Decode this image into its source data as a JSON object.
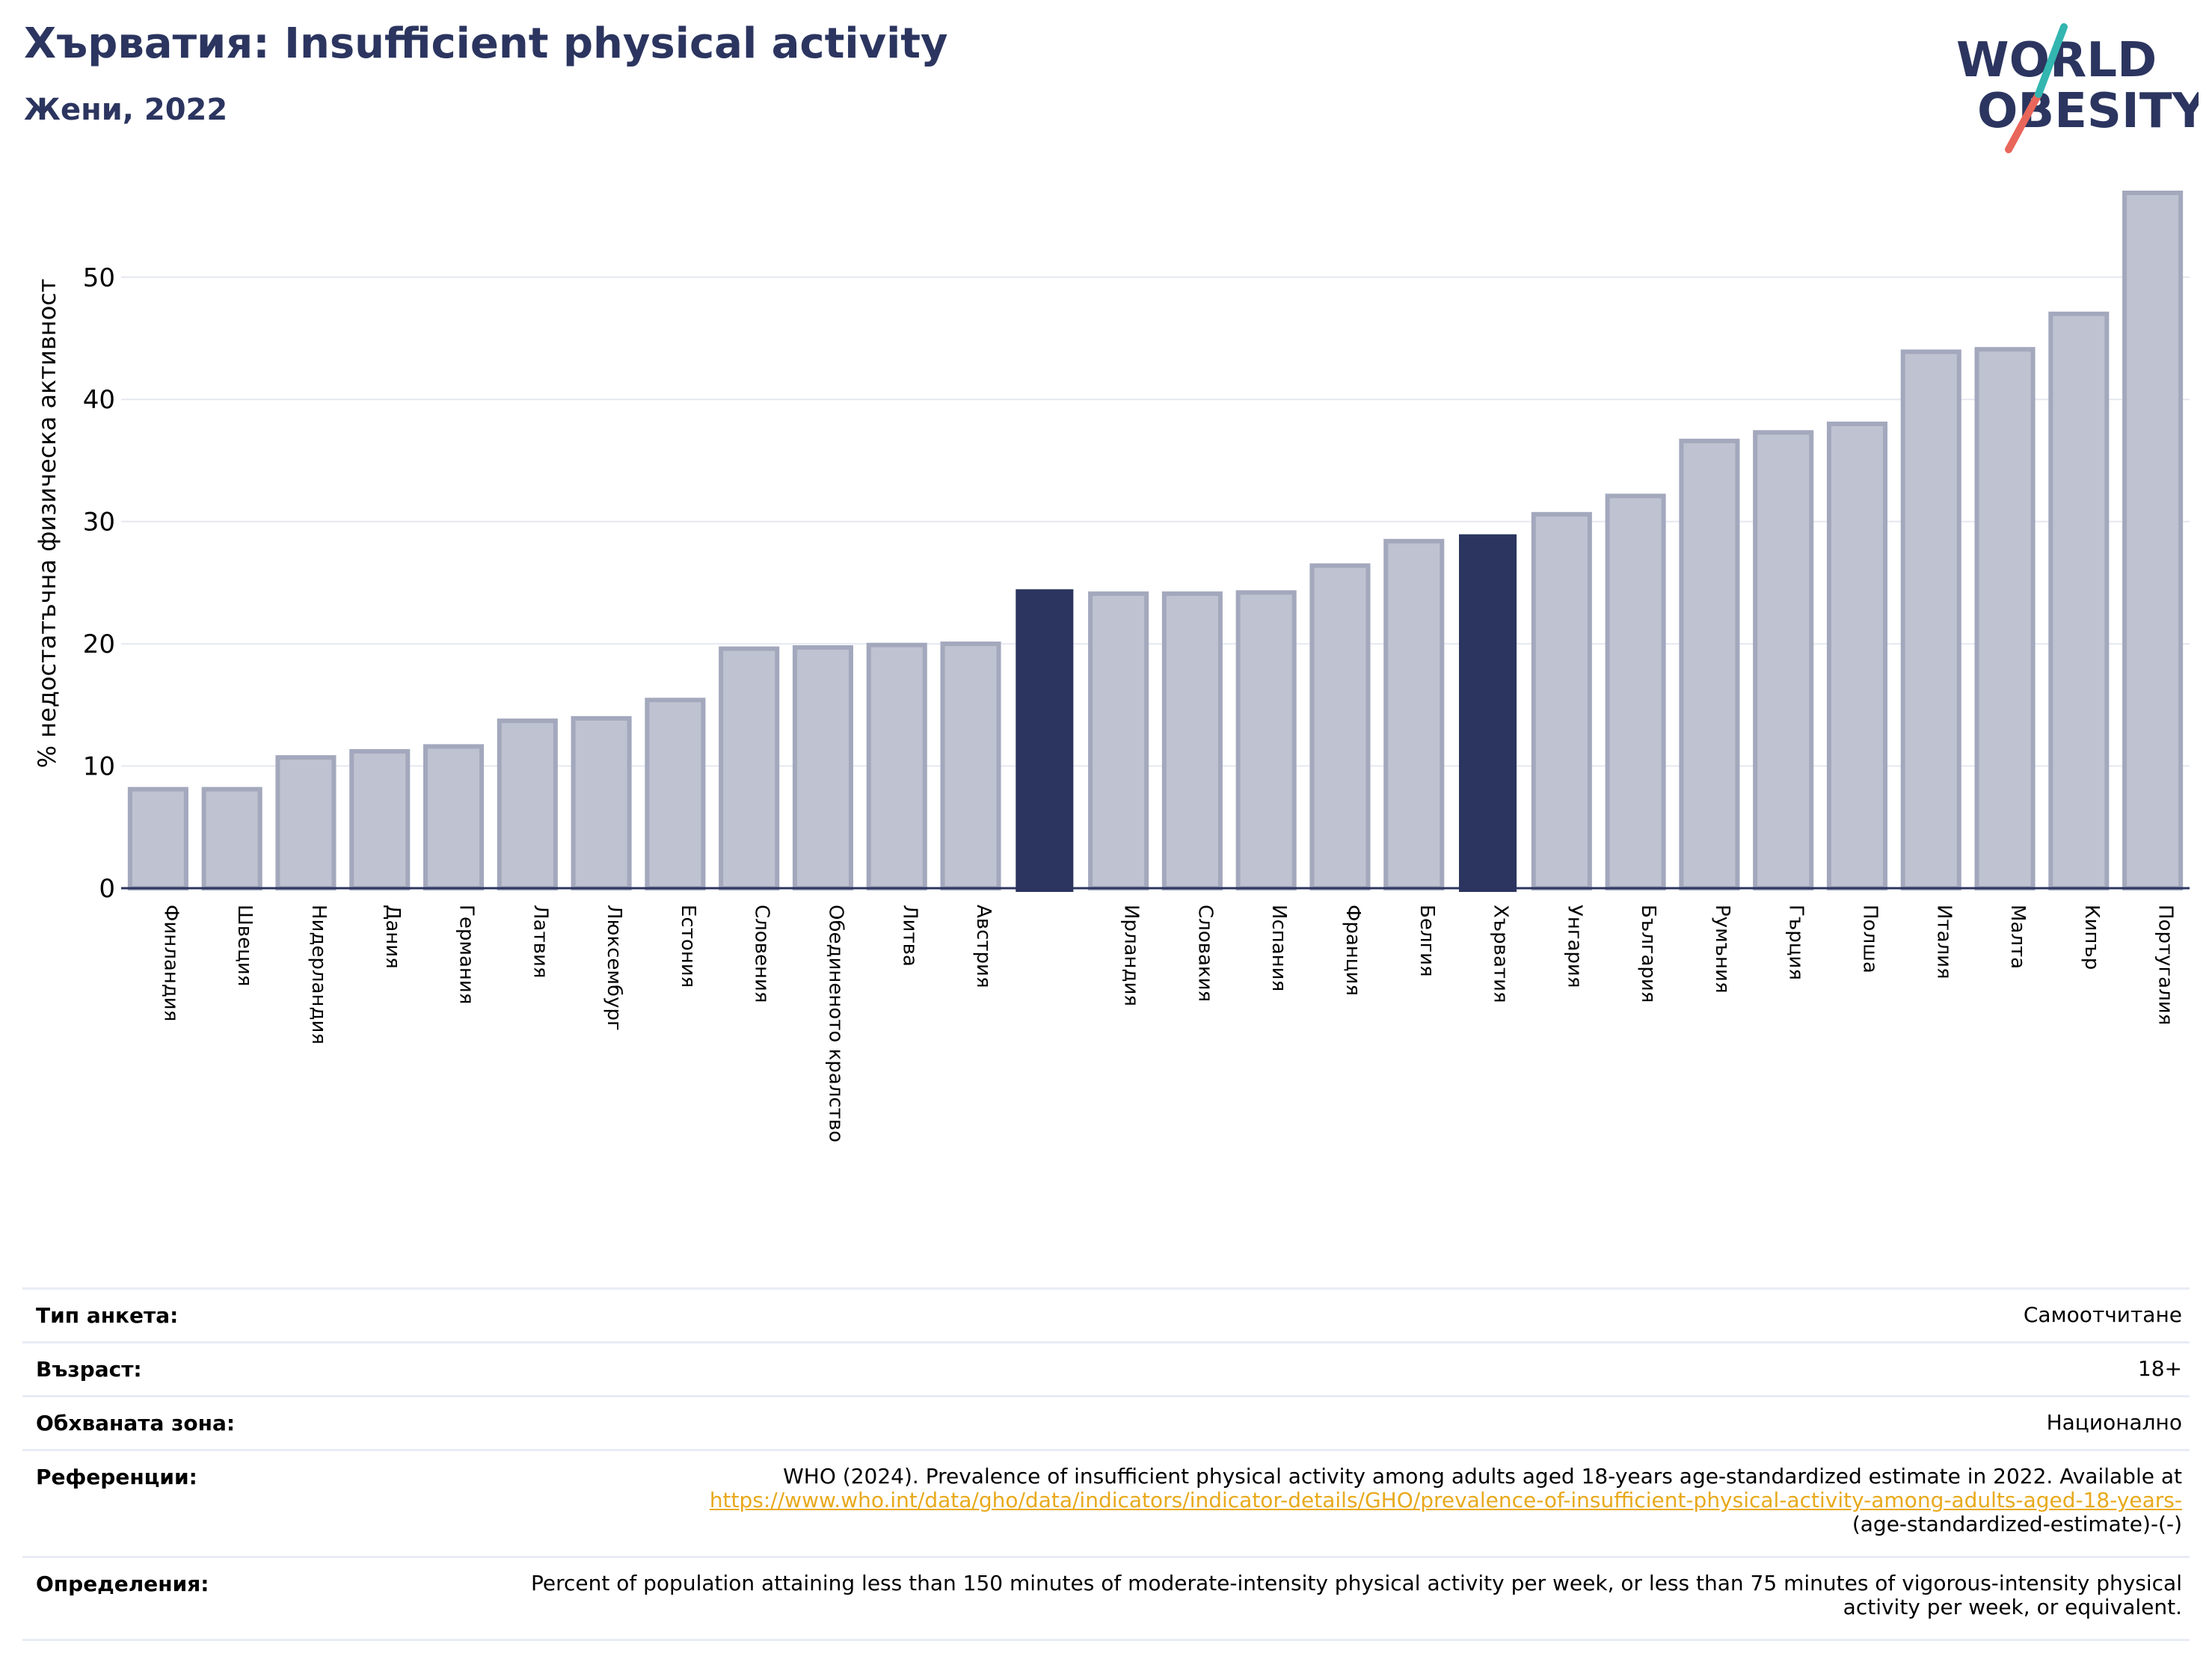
{
  "header": {
    "title": "Хърватия: Insufficient physical activity",
    "subtitle": "Жени, 2022"
  },
  "logo": {
    "line1": "WORLD",
    "line2": "OBESITY"
  },
  "chart_data": {
    "type": "bar",
    "ylabel": "% недостатъчна физическа активност",
    "ylim": [
      0,
      58
    ],
    "yticks": [
      0,
      10,
      20,
      30,
      40,
      50
    ],
    "grid": true,
    "categories": [
      "Финландия",
      "Швеция",
      "Нидерландия",
      "Дания",
      "Германия",
      "Латвия",
      "Люксембург",
      "Естония",
      "Словения",
      "Обединеното кралство",
      "Литва",
      "Австрия",
      "",
      "Ирландия",
      "Словакия",
      "Испания",
      "Франция",
      "Белгия",
      "Хърватия",
      "Унгария",
      "България",
      "Румъния",
      "Гърция",
      "Полша",
      "Италия",
      "Малта",
      "Кипър",
      "Португалия"
    ],
    "values": [
      8.1,
      8.1,
      10.7,
      11.2,
      11.6,
      13.7,
      13.9,
      15.4,
      19.6,
      19.7,
      19.9,
      20.0,
      24.4,
      24.1,
      24.1,
      24.2,
      26.4,
      28.4,
      28.9,
      30.6,
      32.1,
      36.6,
      37.3,
      38.0,
      43.9,
      44.1,
      47.0,
      56.9
    ],
    "highlight": [
      12,
      18
    ],
    "colors": {
      "bar": "#bfc2d0",
      "bar_edge": "#a3a8bd",
      "highlight": "#2b355f",
      "grid": "#e6e8f1",
      "axis": "#2b355f"
    }
  },
  "meta": {
    "survey_label": "Тип анкета:",
    "survey_value": "Самоотчитане",
    "age_label": "Възраст:",
    "age_value": "18+",
    "area_label": "Обхваната зона:",
    "area_value": "Национално",
    "ref_label": "Референции:",
    "ref_text": "WHO (2024). Prevalence of insufficient physical activity among adults aged 18-years age-standardized estimate in 2022. Available at",
    "ref_link": "https://www.who.int/data/gho/data/indicators/indicator-details/GHO/prevalence-of-insufficient-physical-activity-among-adults-aged-18-years-",
    "ref_tail": "(age-standardized-estimate)-(-)",
    "def_label": "Определения:",
    "def_value": "Percent of population attaining less than 150 minutes of moderate-intensity physical activity per week, or less than 75 minutes of vigorous-intensity physical activity per week, or equivalent."
  }
}
